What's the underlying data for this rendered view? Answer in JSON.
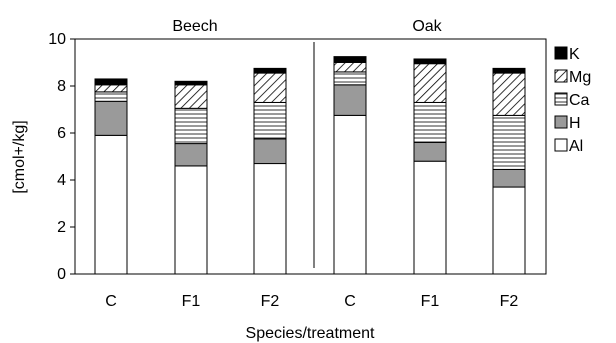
{
  "chart_data": {
    "type": "bar",
    "stacked": true,
    "title": "",
    "xlabel": "Species/treatment",
    "ylabel": "[cmol+/kg]",
    "ylim": [
      0,
      10
    ],
    "yticks": [
      0,
      2,
      4,
      6,
      8,
      10
    ],
    "grid": false,
    "legend_position": "right",
    "groups": [
      {
        "name": "Beech",
        "categories": [
          "C",
          "F1",
          "F2"
        ]
      },
      {
        "name": "Oak",
        "categories": [
          "C",
          "F1",
          "F2"
        ]
      }
    ],
    "categories": [
      "C",
      "F1",
      "F2",
      "C",
      "F1",
      "F2"
    ],
    "series": [
      {
        "name": "Al",
        "pattern": "white",
        "values": [
          5.9,
          4.6,
          4.7,
          6.75,
          4.8,
          3.7
        ]
      },
      {
        "name": "H",
        "pattern": "gray",
        "values": [
          1.45,
          0.95,
          1.05,
          1.3,
          0.8,
          0.75
        ]
      },
      {
        "name": "Ca",
        "pattern": "horizontal-lines",
        "values": [
          0.4,
          1.5,
          1.55,
          0.55,
          1.7,
          2.3
        ]
      },
      {
        "name": "Mg",
        "pattern": "diagonal-hatch",
        "values": [
          0.3,
          1.0,
          1.25,
          0.4,
          1.65,
          1.8
        ]
      },
      {
        "name": "K",
        "pattern": "black",
        "values": [
          0.25,
          0.15,
          0.2,
          0.25,
          0.2,
          0.2
        ]
      }
    ],
    "legend_order": [
      "K",
      "Mg",
      "Ca",
      "H",
      "Al"
    ],
    "colors": {
      "black": "#000000",
      "gray": "#9a9a9a",
      "white": "#ffffff"
    }
  }
}
